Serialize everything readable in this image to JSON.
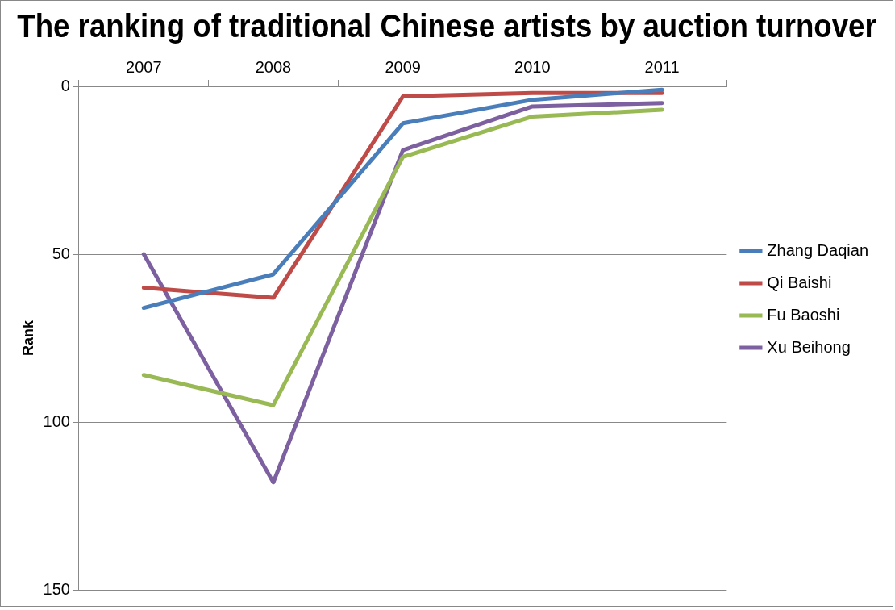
{
  "chart_data": {
    "type": "line",
    "title": "The ranking of traditional Chinese artists by auction turnover",
    "ylabel": "Rank",
    "categories": [
      "2007",
      "2008",
      "2009",
      "2010",
      "2011"
    ],
    "series": [
      {
        "name": "Zhang Daqian",
        "color": "#4a7ebb",
        "values": [
          66,
          56,
          11,
          4,
          1
        ]
      },
      {
        "name": "Qi Baishi",
        "color": "#be4b48",
        "values": [
          60,
          63,
          3,
          2,
          2
        ]
      },
      {
        "name": "Fu Baoshi",
        "color": "#98b954",
        "values": [
          86,
          95,
          21,
          9,
          7
        ]
      },
      {
        "name": "Xu Beihong",
        "color": "#7d60a0",
        "values": [
          50,
          118,
          19,
          6,
          5
        ]
      }
    ],
    "ylim": [
      150,
      0
    ],
    "yticks": [
      0,
      50,
      100,
      150
    ],
    "grid": "y",
    "legend": "right",
    "marker": "none",
    "line_style": "solid"
  }
}
